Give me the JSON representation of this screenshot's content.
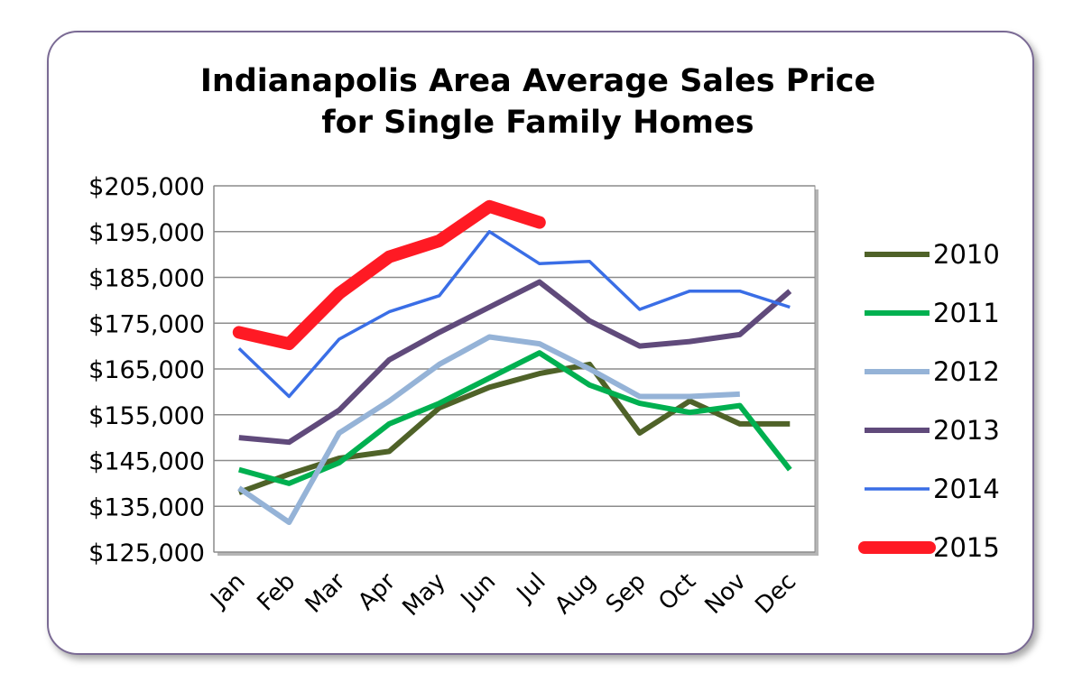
{
  "chart_data": {
    "type": "line",
    "title": "Indianapolis Area Average Sales Price",
    "subtitle": "for Single Family Homes",
    "xlabel": "",
    "ylabel": "",
    "categories": [
      "Jan",
      "Feb",
      "Mar",
      "Apr",
      "May",
      "Jun",
      "Jul",
      "Aug",
      "Sep",
      "Oct",
      "Nov",
      "Dec"
    ],
    "ylim": [
      125000,
      205000
    ],
    "yticks": [
      125000,
      135000,
      145000,
      155000,
      165000,
      175000,
      185000,
      195000,
      205000
    ],
    "ytick_labels": [
      "$125,000",
      "$135,000",
      "$145,000",
      "$155,000",
      "$165,000",
      "$175,000",
      "$185,000",
      "$195,000",
      "$205,000"
    ],
    "grid": "horizontal",
    "legend_position": "right",
    "series": [
      {
        "name": "2010",
        "color": "#4f6228",
        "width": 6,
        "values": [
          138000,
          142000,
          145500,
          147000,
          156500,
          161000,
          164000,
          166000,
          151000,
          158000,
          153000,
          153000
        ]
      },
      {
        "name": "2011",
        "color": "#00b050",
        "width": 6,
        "values": [
          143000,
          140000,
          144500,
          153000,
          157500,
          163000,
          168500,
          161500,
          157500,
          155500,
          157000,
          143000
        ]
      },
      {
        "name": "2012",
        "color": "#95b3d7",
        "width": 6,
        "values": [
          139000,
          131500,
          151000,
          158000,
          166000,
          172000,
          170500,
          165000,
          159000,
          159000,
          159500,
          null
        ]
      },
      {
        "name": "2013",
        "color": "#604a7b",
        "width": 6,
        "values": [
          150000,
          149000,
          156000,
          167000,
          173000,
          178500,
          184000,
          175500,
          170000,
          171000,
          172500,
          182000
        ]
      },
      {
        "name": "2014",
        "color": "#3a6ee6",
        "width": 3.5,
        "values": [
          169500,
          159000,
          171500,
          177500,
          181000,
          195000,
          188000,
          188500,
          178000,
          182000,
          182000,
          178500
        ]
      },
      {
        "name": "2015",
        "color": "#ff1a24",
        "width": 14,
        "values": [
          173000,
          170500,
          181500,
          189500,
          193000,
          200500,
          197000,
          null,
          null,
          null,
          null,
          null
        ]
      }
    ]
  }
}
